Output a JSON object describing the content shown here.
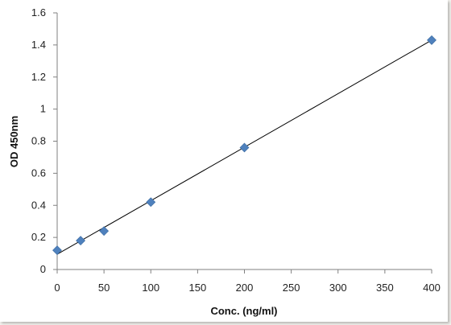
{
  "chart_data": {
    "type": "scatter",
    "xlabel": "Conc. (ng/ml)",
    "ylabel": "OD 450nm",
    "xlim": [
      0,
      400
    ],
    "ylim": [
      0,
      1.6
    ],
    "xticks": [
      0,
      50,
      100,
      150,
      200,
      250,
      300,
      350,
      400
    ],
    "yticks": [
      0,
      0.2,
      0.4,
      0.6,
      0.8,
      1,
      1.2,
      1.4,
      1.6
    ],
    "ytick_labels": [
      "0",
      "0.2",
      "0.4",
      "0.6",
      "0.8",
      "1",
      "1.2",
      "1.4",
      "1.6"
    ],
    "series": [
      {
        "x": [
          0,
          25,
          50,
          100,
          200,
          400
        ],
        "y": [
          0.12,
          0.18,
          0.24,
          0.42,
          0.76,
          1.43
        ],
        "color": "#4f81bd",
        "marker": "diamond"
      }
    ],
    "trendline": {
      "type": "linear",
      "x": [
        0,
        400
      ],
      "y": [
        0.095,
        1.43
      ],
      "color": "#000000"
    },
    "grid": false,
    "legend": "none"
  }
}
